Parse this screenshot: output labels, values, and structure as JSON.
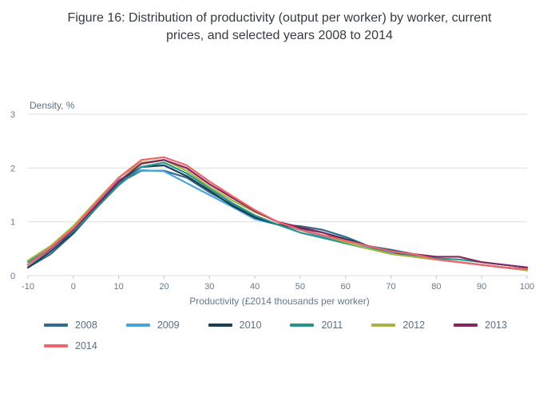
{
  "title": "Figure 16: Distribution of productivity (output per worker) by worker, current prices, and selected years 2008 to 2014",
  "chart_data": {
    "type": "line",
    "title": "Figure 16: Distribution of productivity (output per worker) by worker, current prices, and selected years 2008 to 2014",
    "ylabel": "Density, %",
    "xlabel": "Productivity (£2014 thousands per worker)",
    "xlim": [
      -10,
      100
    ],
    "ylim": [
      0,
      3
    ],
    "xticks": [
      -10,
      0,
      10,
      20,
      30,
      40,
      50,
      60,
      70,
      80,
      90,
      100
    ],
    "yticks": [
      0,
      1,
      2,
      3
    ],
    "grid": "horizontal-only",
    "legend_position": "bottom",
    "x": [
      -10,
      -5,
      0,
      5,
      10,
      15,
      20,
      25,
      30,
      35,
      40,
      45,
      50,
      55,
      60,
      65,
      70,
      75,
      80,
      85,
      90,
      95,
      100
    ],
    "series": [
      {
        "name": "2008",
        "color": "#35698c",
        "values": [
          0.15,
          0.4,
          0.78,
          1.25,
          1.72,
          1.95,
          1.95,
          1.82,
          1.55,
          1.32,
          1.1,
          0.95,
          0.92,
          0.85,
          0.72,
          0.55,
          0.48,
          0.4,
          0.3,
          0.25,
          0.2,
          0.15,
          0.12
        ]
      },
      {
        "name": "2009",
        "color": "#4aa3d8",
        "values": [
          0.2,
          0.5,
          0.88,
          1.32,
          1.78,
          1.96,
          1.94,
          1.72,
          1.5,
          1.28,
          1.05,
          0.95,
          0.85,
          0.72,
          0.6,
          0.52,
          0.42,
          0.35,
          0.3,
          0.25,
          0.2,
          0.15,
          0.1
        ]
      },
      {
        "name": "2010",
        "color": "#1d3d53",
        "values": [
          0.15,
          0.45,
          0.8,
          1.28,
          1.75,
          2.02,
          2.05,
          1.85,
          1.58,
          1.3,
          1.08,
          0.95,
          0.88,
          0.8,
          0.68,
          0.55,
          0.45,
          0.35,
          0.3,
          0.25,
          0.2,
          0.15,
          0.1
        ]
      },
      {
        "name": "2011",
        "color": "#27948a",
        "values": [
          0.25,
          0.52,
          0.82,
          1.25,
          1.68,
          2.02,
          2.1,
          1.9,
          1.62,
          1.35,
          1.12,
          0.95,
          0.8,
          0.7,
          0.6,
          0.5,
          0.45,
          0.38,
          0.32,
          0.3,
          0.25,
          0.2,
          0.15
        ]
      },
      {
        "name": "2012",
        "color": "#a8b545",
        "values": [
          0.28,
          0.55,
          0.92,
          1.38,
          1.82,
          2.1,
          2.15,
          1.95,
          1.65,
          1.4,
          1.18,
          1.0,
          0.85,
          0.75,
          0.62,
          0.5,
          0.4,
          0.35,
          0.3,
          0.25,
          0.2,
          0.15,
          0.1
        ]
      },
      {
        "name": "2013",
        "color": "#85275f",
        "values": [
          0.2,
          0.5,
          0.85,
          1.3,
          1.75,
          2.08,
          2.15,
          2.0,
          1.7,
          1.45,
          1.2,
          1.0,
          0.9,
          0.8,
          0.65,
          0.55,
          0.45,
          0.4,
          0.35,
          0.35,
          0.25,
          0.2,
          0.15
        ]
      },
      {
        "name": "2014",
        "color": "#f0646c",
        "values": [
          0.2,
          0.52,
          0.88,
          1.35,
          1.82,
          2.15,
          2.2,
          2.05,
          1.75,
          1.48,
          1.22,
          1.0,
          0.85,
          0.75,
          0.65,
          0.55,
          0.45,
          0.4,
          0.3,
          0.25,
          0.2,
          0.15,
          0.12
        ]
      }
    ],
    "style": {
      "grid_color": "#dadfe2",
      "tick_color": "#bcc4c9",
      "axis_text_color": "#64798a",
      "line_width": 2.2
    }
  }
}
